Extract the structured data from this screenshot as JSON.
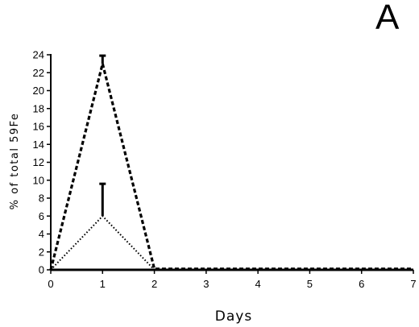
{
  "chart_data": {
    "type": "line",
    "panel_label": "A",
    "xlabel": "Days",
    "ylabel": "% of total 59Fe",
    "xlim": [
      0,
      7
    ],
    "ylim": [
      0,
      24
    ],
    "x_ticks": [
      0,
      1,
      2,
      3,
      4,
      5,
      6,
      7
    ],
    "y_ticks": [
      0,
      2,
      4,
      6,
      8,
      10,
      12,
      14,
      16,
      18,
      20,
      22,
      24
    ],
    "grid": false,
    "series": [
      {
        "style": "dashed-thick",
        "x": [
          0,
          1,
          2,
          3,
          4,
          5,
          6,
          7
        ],
        "y": [
          0,
          23,
          0.1,
          0.1,
          0.1,
          0.1,
          0.1,
          0.1
        ],
        "error_upper": [
          0,
          23.9,
          0,
          0,
          0,
          0,
          0,
          0
        ]
      },
      {
        "style": "dotted",
        "x": [
          0,
          1,
          2
        ],
        "y": [
          0,
          6,
          0
        ],
        "error_upper": [
          0,
          9.6,
          0
        ]
      },
      {
        "style": "solid-thick",
        "x": [
          0,
          1,
          2,
          3,
          4,
          5,
          6,
          7
        ],
        "y": [
          0,
          0,
          0,
          0,
          0,
          0,
          0,
          0
        ],
        "error_upper": [
          0,
          0,
          0,
          0,
          0,
          0,
          0,
          0
        ]
      }
    ]
  }
}
